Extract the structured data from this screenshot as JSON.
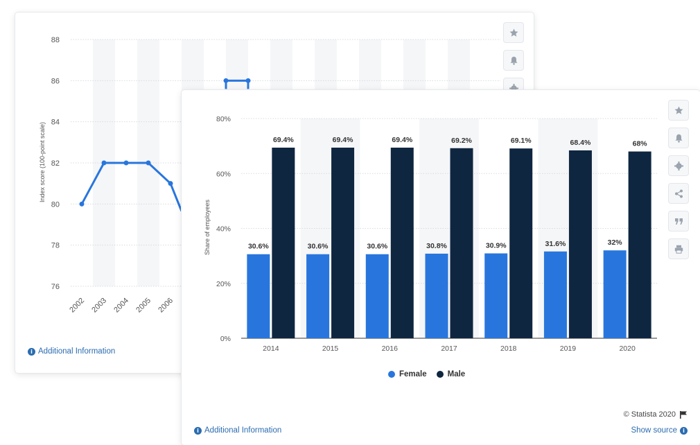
{
  "back_card": {
    "additional_info": "Additional Information",
    "tools": [
      "star-icon",
      "bell-icon",
      "gear-icon"
    ]
  },
  "front_card": {
    "additional_info": "Additional Information",
    "copyright": "© Statista 2020",
    "show_source": "Show source",
    "tools": [
      "star-icon",
      "bell-icon",
      "gear-icon",
      "share-icon",
      "quote-icon",
      "print-icon"
    ],
    "legend": [
      {
        "label": "Female",
        "color": "#2876dd"
      },
      {
        "label": "Male",
        "color": "#0f2640"
      }
    ]
  },
  "chart_data": [
    {
      "type": "line",
      "ylabel": "Index score (100-point scale)",
      "ylim": [
        76,
        88
      ],
      "yticks": [
        "76",
        "78",
        "80",
        "82",
        "84",
        "86",
        "88"
      ],
      "x": [
        "2002",
        "2003",
        "2004",
        "2005",
        "2006"
      ],
      "series": [
        {
          "values": [
            80,
            82,
            82,
            82,
            81
          ],
          "color": "#2876dd"
        }
      ],
      "partial_points": [
        {
          "x_index": 6.5,
          "value": 86
        },
        {
          "x_index": 7.5,
          "value": 86
        }
      ],
      "grid": true
    },
    {
      "type": "bar",
      "ylabel": "Share of employees",
      "ylim": [
        0,
        80
      ],
      "yticks": [
        "0%",
        "20%",
        "40%",
        "60%",
        "80%"
      ],
      "categories": [
        "2014",
        "2015",
        "2016",
        "2017",
        "2018",
        "2019",
        "2020"
      ],
      "series": [
        {
          "name": "Female",
          "color": "#2876dd",
          "values": [
            30.6,
            30.6,
            30.6,
            30.8,
            30.9,
            31.6,
            32
          ],
          "labels": [
            "30.6%",
            "30.6%",
            "30.6%",
            "30.8%",
            "30.9%",
            "31.6%",
            "32%"
          ]
        },
        {
          "name": "Male",
          "color": "#0f2640",
          "values": [
            69.4,
            69.4,
            69.4,
            69.2,
            69.1,
            68.4,
            68
          ],
          "labels": [
            "69.4%",
            "69.4%",
            "69.4%",
            "69.2%",
            "69.1%",
            "68.4%",
            "68%"
          ]
        }
      ],
      "grid": true,
      "legend_position": "bottom"
    }
  ]
}
